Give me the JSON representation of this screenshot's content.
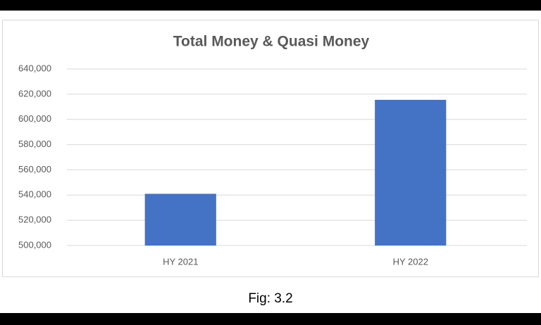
{
  "chart_data": {
    "type": "bar",
    "title": "Total Money & Quasi Money",
    "categories": [
      "HY 2021",
      "HY 2022"
    ],
    "values": [
      541000,
      615500
    ],
    "color": "#4472c4",
    "ylim": [
      500000,
      640000
    ],
    "yticks": [
      {
        "value": 500000,
        "label": "500,000"
      },
      {
        "value": 520000,
        "label": "520,000"
      },
      {
        "value": 540000,
        "label": "540,000"
      },
      {
        "value": 560000,
        "label": "560,000"
      },
      {
        "value": 580000,
        "label": "580,000"
      },
      {
        "value": 600000,
        "label": "600,000"
      },
      {
        "value": 620000,
        "label": "620,000"
      },
      {
        "value": 640000,
        "label": "640,000"
      }
    ],
    "grid": true
  },
  "caption": "Fig: 3.2"
}
